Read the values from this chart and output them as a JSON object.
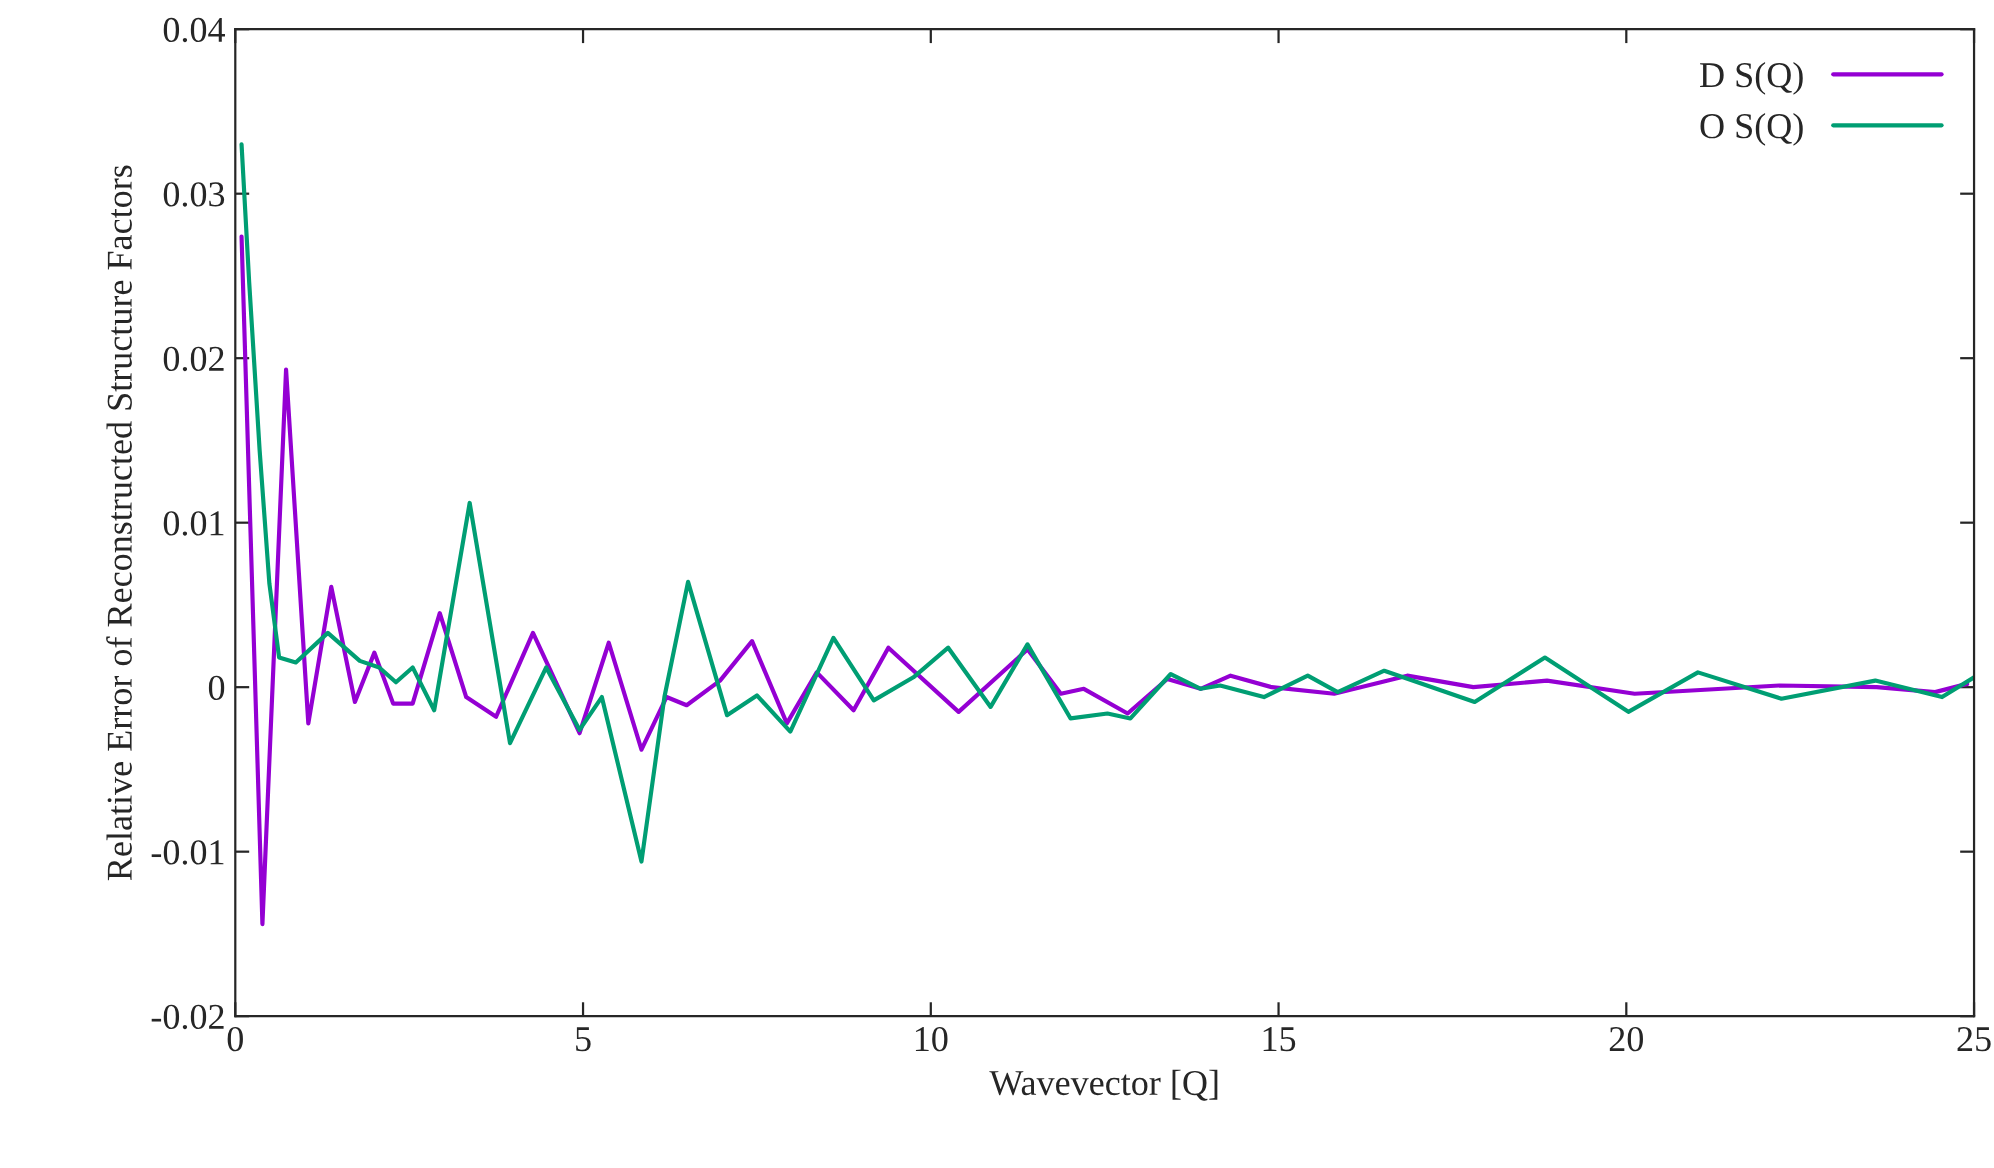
{
  "chart_data": {
    "type": "line",
    "xlabel": "Wavevector [Q]",
    "ylabel": "Relative Error of Reconstructed Structure Factors",
    "xlim": [
      0,
      25
    ],
    "xticks": [
      0,
      5,
      10,
      15,
      20,
      25
    ],
    "ylim": [
      -0.02,
      0.04
    ],
    "yticks": [
      {
        "value": -0.02,
        "label": "-0.02"
      },
      {
        "value": -0.01,
        "label": "-0.01"
      },
      0,
      0.01,
      0.02,
      0.03,
      0.04
    ],
    "grid": false,
    "legend": "top right",
    "series": [
      {
        "name": "D S(Q)",
        "color": "#9400d3",
        "x": [
          0.09,
          0.39,
          0.73,
          1.05,
          1.38,
          1.72,
          2.0,
          2.27,
          2.55,
          2.94,
          3.32,
          3.75,
          4.28,
          4.95,
          5.37,
          5.84,
          6.2,
          6.49,
          6.97,
          7.43,
          7.93,
          8.36,
          8.89,
          9.39,
          10.4,
          11.39,
          11.87,
          12.2,
          12.83,
          13.4,
          13.88,
          14.31,
          14.9,
          15.8,
          16.85,
          17.8,
          18.86,
          20.12,
          22.2,
          23.6,
          24.44,
          24.9
        ],
        "values": [
          0.0274,
          -0.0144,
          0.0193,
          -0.0022,
          0.0061,
          -0.0009,
          0.0021,
          -0.001,
          -0.001,
          0.0045,
          -0.0006,
          -0.0018,
          0.0033,
          -0.0028,
          0.0027,
          -0.0038,
          -0.0006,
          -0.0011,
          0.0004,
          0.0028,
          -0.0022,
          0.0009,
          -0.0014,
          0.0024,
          -0.0015,
          0.0023,
          -0.0004,
          -0.0001,
          -0.0016,
          0.0005,
          -0.0001,
          0.0007,
          0.0,
          -0.0004,
          0.0007,
          0.0,
          0.0004,
          -0.0004,
          0.0001,
          0.0,
          -0.0003,
          0.0002
        ]
      },
      {
        "name": "O S(Q)",
        "color": "#009e73",
        "x": [
          0.09,
          0.2,
          0.35,
          0.49,
          0.63,
          0.87,
          1.33,
          1.79,
          2.07,
          2.31,
          2.55,
          2.86,
          3.37,
          3.95,
          4.47,
          4.95,
          5.27,
          5.84,
          6.17,
          6.51,
          7.07,
          7.5,
          7.98,
          8.6,
          9.18,
          9.75,
          10.25,
          10.86,
          11.39,
          12.01,
          12.54,
          12.87,
          13.45,
          13.88,
          14.16,
          14.79,
          15.42,
          15.85,
          16.52,
          17.82,
          18.83,
          20.03,
          21.03,
          22.23,
          23.58,
          24.54,
          25.0
        ],
        "values": [
          0.033,
          0.0246,
          0.0144,
          0.0063,
          0.0018,
          0.0015,
          0.0033,
          0.0016,
          0.0012,
          0.0003,
          0.0012,
          -0.0014,
          0.0112,
          -0.0034,
          0.0012,
          -0.0026,
          -0.0006,
          -0.0106,
          -0.0006,
          0.0064,
          -0.0017,
          -0.0005,
          -0.0027,
          0.003,
          -0.0008,
          0.0006,
          0.0024,
          -0.0012,
          0.0026,
          -0.0019,
          -0.0016,
          -0.0019,
          0.0008,
          -0.0001,
          0.0001,
          -0.0006,
          0.0007,
          -0.0003,
          0.001,
          -0.0009,
          0.0018,
          -0.0015,
          0.0009,
          -0.0007,
          0.0004,
          -0.0006,
          0.0006
        ]
      }
    ]
  }
}
